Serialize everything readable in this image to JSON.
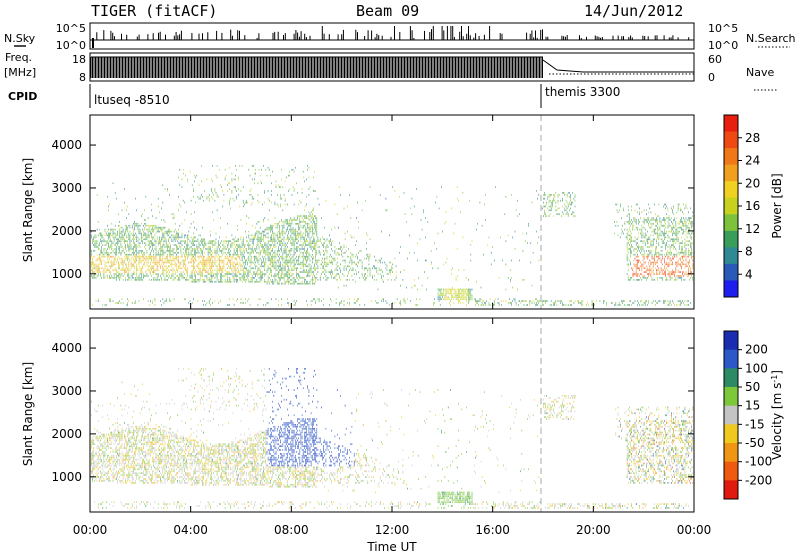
{
  "header": {
    "title": "TIGER (fitACF)",
    "beam": "Beam 09",
    "date": "14/Jun/2012"
  },
  "strip": {
    "nsky_label": "N.Sky",
    "nsearch_label": "N.Search",
    "nsky_ticks": [
      "10^5",
      "10^0"
    ],
    "nsky_right_ticks": [
      "10^5",
      "10^0"
    ],
    "freq_label": "Freq.",
    "freq_unit": "[MHz]",
    "freq_ticks": [
      "18",
      "8"
    ],
    "nave_label": "Nave",
    "nave_ticks": [
      "60",
      "0"
    ],
    "cpid_label": "CPID",
    "cpid_segments": [
      {
        "name": "ltuseq -8510",
        "start_hour": 0,
        "end_hour": 18
      },
      {
        "name": "themis 3300",
        "start_hour": 18,
        "end_hour": 24
      }
    ]
  },
  "chart_data": [
    {
      "type": "heatmap",
      "title": "",
      "xlabel": "Time UT",
      "ylabel": "Slant Range [km]",
      "xlim": [
        0,
        24
      ],
      "ylim": [
        180,
        4700
      ],
      "x_ticks": [
        "00:00",
        "04:00",
        "08:00",
        "12:00",
        "16:00",
        "20:00",
        "00:00"
      ],
      "y_ticks": [
        1000,
        2000,
        3000,
        4000
      ],
      "mode_change_hour": 18,
      "colorbar": {
        "label": "Power [dB]",
        "range": [
          0,
          32
        ],
        "ticks": [
          4,
          8,
          12,
          16,
          20,
          24,
          28
        ],
        "colors": [
          "#1e1ef0",
          "#2a5ab8",
          "#2f8a96",
          "#3a9e5a",
          "#7ec23c",
          "#c8d21e",
          "#f0d020",
          "#f0a01c",
          "#f07818",
          "#f04a14",
          "#e81e10"
        ]
      },
      "regions": [
        {
          "name": "near-range band",
          "hours": [
            0,
            9
          ],
          "range_km": [
            900,
            1800
          ],
          "level": "medium-high"
        },
        {
          "name": "decaying band",
          "hours": [
            7,
            12
          ],
          "range_km": [
            900,
            1600
          ],
          "level": "low-medium"
        },
        {
          "name": "afternoon patch",
          "hours": [
            14,
            15
          ],
          "range_km": [
            400,
            600
          ],
          "level": "medium"
        },
        {
          "name": "evening echo",
          "hours": [
            21.5,
            24
          ],
          "range_km": [
            800,
            2300
          ],
          "level": "high"
        }
      ]
    },
    {
      "type": "heatmap",
      "title": "",
      "xlabel": "Time UT",
      "ylabel": "Slant Range [km]",
      "xlim": [
        0,
        24
      ],
      "ylim": [
        180,
        4700
      ],
      "x_ticks": [
        "00:00",
        "04:00",
        "08:00",
        "12:00",
        "16:00",
        "20:00",
        "00:00"
      ],
      "y_ticks": [
        1000,
        2000,
        3000,
        4000
      ],
      "mode_change_hour": 18,
      "colorbar": {
        "label": "Velocity [m s",
        "label_sup": "-1",
        "label_end": "]",
        "range": [
          -250,
          250
        ],
        "ticks": [
          200,
          100,
          50,
          15,
          -15,
          -50,
          -100,
          -200
        ],
        "colors": [
          "#1a2cb0",
          "#2c58c8",
          "#2e8a64",
          "#7cc83a",
          "#c4c4c4",
          "#f0c81e",
          "#f09614",
          "#f05a10",
          "#e01a0e"
        ]
      },
      "regions": [
        {
          "name": "mixed flow band",
          "hours": [
            0,
            7
          ],
          "range_km": [
            900,
            2000
          ],
          "level": "near zero"
        },
        {
          "name": "toward-radar band",
          "hours": [
            7,
            10
          ],
          "range_km": [
            1200,
            2000
          ],
          "level": "positive"
        },
        {
          "name": "afternoon patch",
          "hours": [
            14,
            15
          ],
          "range_km": [
            400,
            600
          ],
          "level": "small positive"
        },
        {
          "name": "evening echo",
          "hours": [
            21.5,
            24
          ],
          "range_km": [
            800,
            2200
          ],
          "level": "mixed"
        }
      ]
    }
  ]
}
